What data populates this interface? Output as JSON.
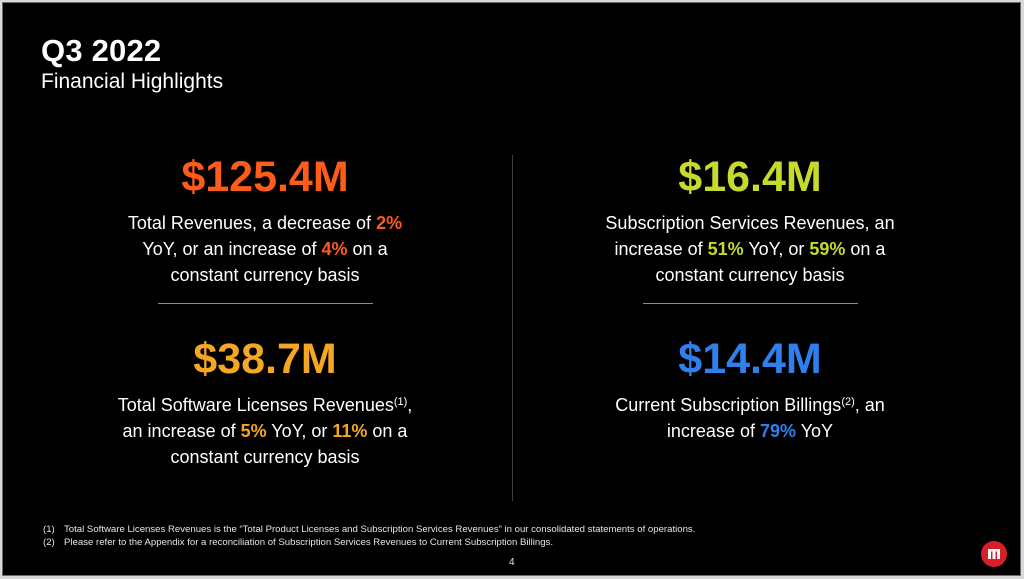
{
  "header": {
    "title": "Q3 2022",
    "subtitle": "Financial Highlights"
  },
  "colors": {
    "orange_red": "#ff5b1a",
    "lime": "#c6d92c",
    "amber": "#f5a623",
    "blue": "#2f80ed"
  },
  "metrics": {
    "total_revenues": {
      "value": "$125.4M",
      "line1_a": "Total Revenues, a decrease of ",
      "line1_pct": "2%",
      "line2_a": "YoY, or an increase of ",
      "line2_pct": "4%",
      "line2_b": " on a",
      "line3": "constant currency basis"
    },
    "subscription_services": {
      "value": "$16.4M",
      "line1": "Subscription Services Revenues, an",
      "line2_a": "increase of ",
      "line2_pct1": "51%",
      "line2_b": " YoY, or ",
      "line2_pct2": "59%",
      "line2_c": " on a",
      "line3": "constant currency basis"
    },
    "software_licenses": {
      "value": "$38.7M",
      "line1_a": "Total Software Licenses Revenues",
      "line1_sup": "(1)",
      "line1_b": ",",
      "line2_a": "an increase of ",
      "line2_pct1": "5%",
      "line2_b": " YoY, or ",
      "line2_pct2": "11%",
      "line2_c": " on a",
      "line3": "constant currency basis"
    },
    "subscription_billings": {
      "value": "$14.4M",
      "line1_a": "Current Subscription Billings",
      "line1_sup": "(2)",
      "line1_b": ", an",
      "line2_a": "increase of ",
      "line2_pct": "79%",
      "line2_b": " YoY"
    }
  },
  "footnotes": [
    {
      "num": "(1)",
      "text": "Total Software Licenses Revenues is the “Total Product Licenses and Subscription Services Revenues” in our consolidated statements of operations."
    },
    {
      "num": "(2)",
      "text": "Please refer to the Appendix for a reconciliation of Subscription Services Revenues to Current Subscription Billings."
    }
  ],
  "page_number": "4",
  "logo": {
    "icon": "microstrategy-logo-icon"
  }
}
